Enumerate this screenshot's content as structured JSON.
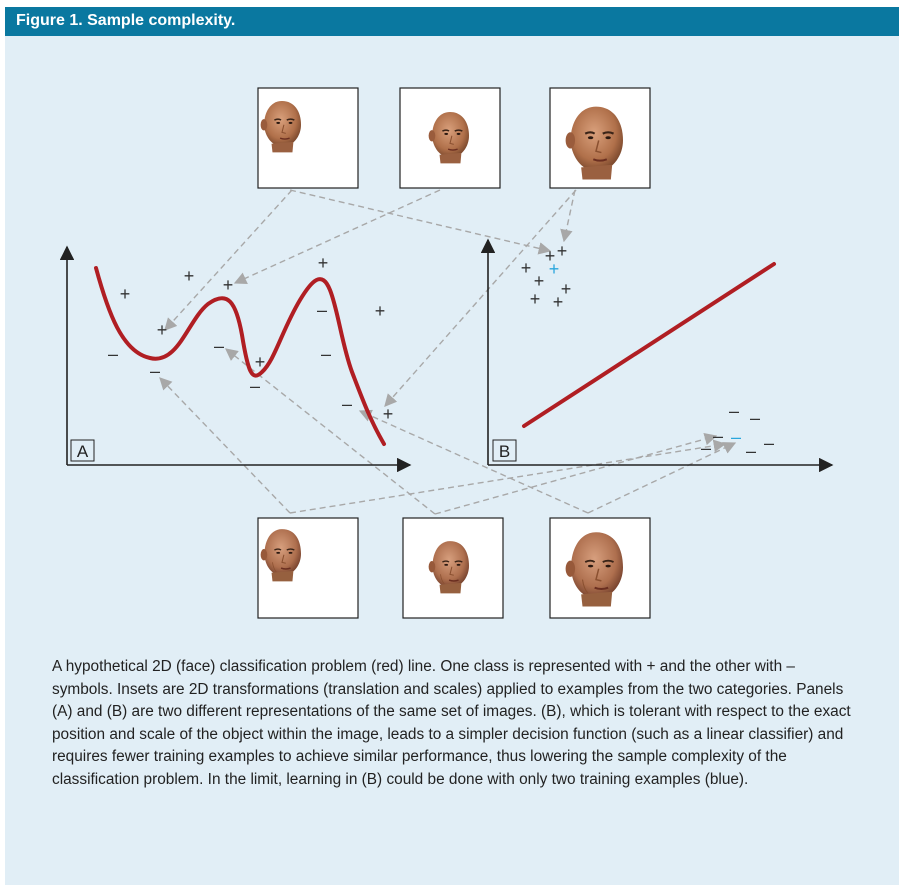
{
  "figure": {
    "title": "Figure 1. Sample complexity.",
    "caption": "A hypothetical 2D (face) classification problem (red) line. One class is represented with + and the other with – symbols. Insets are 2D transformations (translation and scales) applied to examples from the two categories. Panels (A) and (B) are two different representations of the same set of images. (B), which is tolerant with respect to the exact position and scale of the object within the image, leads to a simpler decision function (such as a linear classifier) and requires fewer training examples to achieve similar performance, thus lowering the sample complexity of the classification problem. In the limit, learning in (B) could be done with only two training examples (blue)."
  },
  "panel_a": {
    "label": "A"
  },
  "panel_b": {
    "label": "B"
  },
  "symbols": {
    "plus": "+",
    "minus": "–"
  },
  "colors": {
    "header": "#0a78a0",
    "background": "#e1eef6",
    "decision_line": "#b01e23",
    "highlight": "#2aa6dc",
    "arrow": "#a8a8a8",
    "axis": "#222222"
  },
  "insets": {
    "top": [
      "face-a-small",
      "face-a-medium",
      "face-a-large"
    ],
    "bottom": [
      "face-b-small",
      "face-b-medium",
      "face-b-large"
    ]
  }
}
